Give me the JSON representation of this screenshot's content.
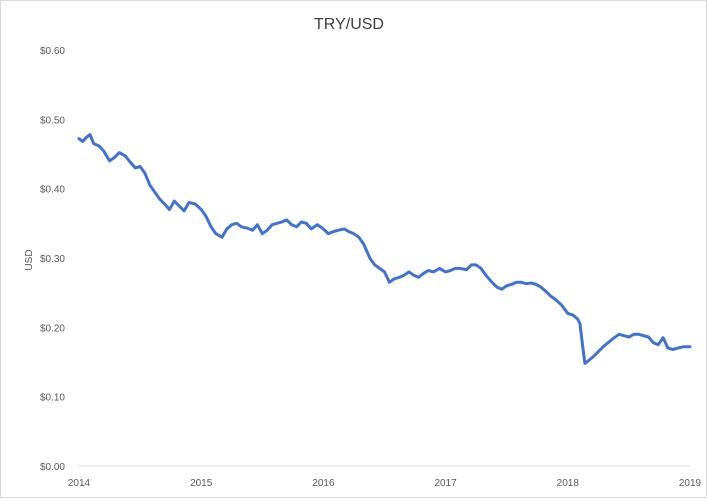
{
  "chart_data": {
    "type": "line",
    "title": "TRY/USD",
    "xlabel": "",
    "ylabel": "USD",
    "xlim": [
      2014,
      2019
    ],
    "ylim": [
      0.0,
      0.6
    ],
    "x_ticks": [
      "2014",
      "2015",
      "2016",
      "2017",
      "2018",
      "2019"
    ],
    "y_ticks": [
      "$0.00",
      "$0.10",
      "$0.20",
      "$0.30",
      "$0.40",
      "$0.50",
      "$0.60"
    ],
    "grid": false,
    "legend": "none",
    "line_color": "#4472c4",
    "series": [
      {
        "x": [
          2014.0,
          2014.03,
          2014.06,
          2014.09,
          2014.12,
          2014.16,
          2014.2,
          2014.25,
          2014.29,
          2014.33,
          2014.38,
          2014.42,
          2014.46,
          2014.5,
          2014.54,
          2014.58,
          2014.62,
          2014.66,
          2014.7,
          2014.74,
          2014.78,
          2014.82,
          2014.86,
          2014.9,
          2014.95,
          2015.0,
          2015.04,
          2015.08,
          2015.12,
          2015.17,
          2015.21,
          2015.25,
          2015.29,
          2015.33,
          2015.38,
          2015.42,
          2015.46,
          2015.5,
          2015.54,
          2015.58,
          2015.62,
          2015.66,
          2015.7,
          2015.74,
          2015.78,
          2015.82,
          2015.86,
          2015.9,
          2015.95,
          2016.0,
          2016.04,
          2016.08,
          2016.12,
          2016.17,
          2016.21,
          2016.25,
          2016.29,
          2016.33,
          2016.38,
          2016.42,
          2016.46,
          2016.5,
          2016.54,
          2016.58,
          2016.62,
          2016.66,
          2016.7,
          2016.74,
          2016.78,
          2016.82,
          2016.86,
          2016.9,
          2016.95,
          2017.0,
          2017.04,
          2017.08,
          2017.12,
          2017.17,
          2017.21,
          2017.25,
          2017.29,
          2017.33,
          2017.38,
          2017.42,
          2017.46,
          2017.5,
          2017.54,
          2017.58,
          2017.62,
          2017.66,
          2017.7,
          2017.74,
          2017.78,
          2017.82,
          2017.86,
          2017.9,
          2017.95,
          2018.0,
          2018.04,
          2018.08,
          2018.1,
          2018.12,
          2018.14,
          2018.17,
          2018.21,
          2018.25,
          2018.29,
          2018.33,
          2018.38,
          2018.42,
          2018.46,
          2018.5,
          2018.54,
          2018.58,
          2018.62,
          2018.66,
          2018.7,
          2018.74,
          2018.78,
          2018.82,
          2018.86,
          2018.9,
          2018.95,
          2019.0
        ],
        "values": [
          0.472,
          0.468,
          0.474,
          0.478,
          0.465,
          0.462,
          0.455,
          0.44,
          0.445,
          0.452,
          0.447,
          0.438,
          0.43,
          0.432,
          0.422,
          0.405,
          0.395,
          0.385,
          0.378,
          0.37,
          0.382,
          0.375,
          0.368,
          0.38,
          0.378,
          0.37,
          0.36,
          0.345,
          0.335,
          0.33,
          0.342,
          0.348,
          0.35,
          0.345,
          0.343,
          0.34,
          0.348,
          0.335,
          0.34,
          0.348,
          0.35,
          0.352,
          0.355,
          0.348,
          0.345,
          0.352,
          0.35,
          0.342,
          0.348,
          0.342,
          0.335,
          0.338,
          0.34,
          0.342,
          0.338,
          0.335,
          0.33,
          0.32,
          0.3,
          0.29,
          0.285,
          0.28,
          0.265,
          0.27,
          0.272,
          0.275,
          0.28,
          0.275,
          0.272,
          0.278,
          0.282,
          0.28,
          0.285,
          0.28,
          0.282,
          0.285,
          0.285,
          0.283,
          0.29,
          0.29,
          0.285,
          0.275,
          0.265,
          0.258,
          0.255,
          0.26,
          0.262,
          0.265,
          0.265,
          0.263,
          0.264,
          0.262,
          0.258,
          0.252,
          0.245,
          0.24,
          0.232,
          0.22,
          0.218,
          0.212,
          0.205,
          0.175,
          0.148,
          0.152,
          0.158,
          0.165,
          0.172,
          0.178,
          0.185,
          0.19,
          0.188,
          0.186,
          0.19,
          0.19,
          0.188,
          0.186,
          0.178,
          0.175,
          0.185,
          0.17,
          0.168,
          0.17,
          0.172,
          0.172
        ]
      }
    ]
  }
}
